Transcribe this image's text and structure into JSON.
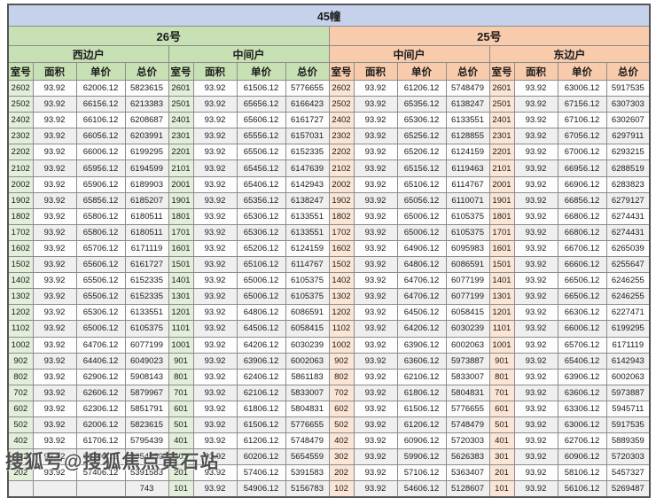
{
  "title": "45幢",
  "watermark": {
    "text": "搜狐号@搜狐焦点黄石站"
  },
  "columns": [
    "室号",
    "面积",
    "单价",
    "总价"
  ],
  "colors": {
    "title_bar": "#c6d1eb",
    "building_26_header": "#c7e1b5",
    "building_26_room_tint": "#e3efda",
    "building_25_header": "#f8cbad",
    "building_25_room_tint": "#fbe5d6",
    "row_stripe": "#efefef",
    "grid_border": "#8c8c8c"
  },
  "buildings": [
    {
      "name": "26号",
      "theme": "green",
      "sections": [
        {
          "name": "西边户",
          "rows": [
            [
              "2602",
              "93.92",
              "62006.12",
              "5823615"
            ],
            [
              "2502",
              "93.92",
              "66156.12",
              "6213383"
            ],
            [
              "2402",
              "93.92",
              "66106.12",
              "6208687"
            ],
            [
              "2302",
              "93.92",
              "66056.12",
              "6203991"
            ],
            [
              "2202",
              "93.92",
              "66006.12",
              "6199295"
            ],
            [
              "2102",
              "93.92",
              "65956.12",
              "6194599"
            ],
            [
              "2002",
              "93.92",
              "65906.12",
              "6189903"
            ],
            [
              "1902",
              "93.92",
              "65856.12",
              "6185207"
            ],
            [
              "1802",
              "93.92",
              "65806.12",
              "6180511"
            ],
            [
              "1702",
              "93.92",
              "65806.12",
              "6180511"
            ],
            [
              "1602",
              "93.92",
              "65706.12",
              "6171119"
            ],
            [
              "1502",
              "93.92",
              "65606.12",
              "6161727"
            ],
            [
              "1402",
              "93.92",
              "65506.12",
              "6152335"
            ],
            [
              "1302",
              "93.92",
              "65506.12",
              "6152335"
            ],
            [
              "1202",
              "93.92",
              "65306.12",
              "6133551"
            ],
            [
              "1102",
              "93.92",
              "65006.12",
              "6105375"
            ],
            [
              "1002",
              "93.92",
              "64706.12",
              "6077199"
            ],
            [
              "902",
              "93.92",
              "64406.12",
              "6049023"
            ],
            [
              "802",
              "93.92",
              "62906.12",
              "5908143"
            ],
            [
              "702",
              "93.92",
              "62606.12",
              "5879967"
            ],
            [
              "602",
              "93.92",
              "62306.12",
              "5851791"
            ],
            [
              "502",
              "93.92",
              "62006.12",
              "5823615"
            ],
            [
              "402",
              "93.92",
              "61706.12",
              "5795439"
            ],
            [
              "302",
              "93.92",
              "60206.12",
              "5654559"
            ],
            [
              "202",
              "93.92",
              "57406.12",
              "5391583"
            ],
            [
              "",
              "",
              "",
              "743"
            ]
          ]
        },
        {
          "name": "中间户",
          "rows": [
            [
              "2601",
              "93.92",
              "61506.12",
              "5776655"
            ],
            [
              "2501",
              "93.92",
              "65656.12",
              "6166423"
            ],
            [
              "2401",
              "93.92",
              "65606.12",
              "6161727"
            ],
            [
              "2301",
              "93.92",
              "65556.12",
              "6157031"
            ],
            [
              "2201",
              "93.92",
              "65506.12",
              "6152335"
            ],
            [
              "2101",
              "93.92",
              "65456.12",
              "6147639"
            ],
            [
              "2001",
              "93.92",
              "65406.12",
              "6142943"
            ],
            [
              "1901",
              "93.92",
              "65356.12",
              "6138247"
            ],
            [
              "1801",
              "93.92",
              "65306.12",
              "6133551"
            ],
            [
              "1701",
              "93.92",
              "65306.12",
              "6133551"
            ],
            [
              "1601",
              "93.92",
              "65206.12",
              "6124159"
            ],
            [
              "1501",
              "93.92",
              "65106.12",
              "6114767"
            ],
            [
              "1401",
              "93.92",
              "65006.12",
              "6105375"
            ],
            [
              "1301",
              "93.92",
              "65006.12",
              "6105375"
            ],
            [
              "1201",
              "93.92",
              "64806.12",
              "6086591"
            ],
            [
              "1101",
              "93.92",
              "64506.12",
              "6058415"
            ],
            [
              "1001",
              "93.92",
              "64206.12",
              "6030239"
            ],
            [
              "901",
              "93.92",
              "63906.12",
              "6002063"
            ],
            [
              "801",
              "93.92",
              "62406.12",
              "5861183"
            ],
            [
              "701",
              "93.92",
              "62106.12",
              "5833007"
            ],
            [
              "601",
              "93.92",
              "61806.12",
              "5804831"
            ],
            [
              "501",
              "93.92",
              "61506.12",
              "5776655"
            ],
            [
              "401",
              "93.92",
              "61206.12",
              "5748479"
            ],
            [
              "301",
              "93.92",
              "60206.12",
              "5654559"
            ],
            [
              "201",
              "93.92",
              "57406.12",
              "5391583"
            ],
            [
              "101",
              "93.92",
              "54906.12",
              "5156783"
            ]
          ]
        }
      ]
    },
    {
      "name": "25号",
      "theme": "orange",
      "sections": [
        {
          "name": "中间户",
          "rows": [
            [
              "2602",
              "93.92",
              "61206.12",
              "5748479"
            ],
            [
              "2502",
              "93.92",
              "65356.12",
              "6138247"
            ],
            [
              "2402",
              "93.92",
              "65306.12",
              "6133551"
            ],
            [
              "2302",
              "93.92",
              "65256.12",
              "6128855"
            ],
            [
              "2202",
              "93.92",
              "65206.12",
              "6124159"
            ],
            [
              "2102",
              "93.92",
              "65156.12",
              "6119463"
            ],
            [
              "2002",
              "93.92",
              "65106.12",
              "6114767"
            ],
            [
              "1902",
              "93.92",
              "65056.12",
              "6110071"
            ],
            [
              "1802",
              "93.92",
              "65006.12",
              "6105375"
            ],
            [
              "1702",
              "93.92",
              "65006.12",
              "6105375"
            ],
            [
              "1602",
              "93.92",
              "64906.12",
              "6095983"
            ],
            [
              "1502",
              "93.92",
              "64806.12",
              "6086591"
            ],
            [
              "1402",
              "93.92",
              "64706.12",
              "6077199"
            ],
            [
              "1302",
              "93.92",
              "64706.12",
              "6077199"
            ],
            [
              "1202",
              "93.92",
              "64506.12",
              "6058415"
            ],
            [
              "1102",
              "93.92",
              "64206.12",
              "6030239"
            ],
            [
              "1002",
              "93.92",
              "63906.12",
              "6002063"
            ],
            [
              "902",
              "93.92",
              "63606.12",
              "5973887"
            ],
            [
              "802",
              "93.92",
              "62106.12",
              "5833007"
            ],
            [
              "702",
              "93.92",
              "61806.12",
              "5804831"
            ],
            [
              "602",
              "93.92",
              "61506.12",
              "5776655"
            ],
            [
              "502",
              "93.92",
              "61206.12",
              "5748479"
            ],
            [
              "402",
              "93.92",
              "60906.12",
              "5720303"
            ],
            [
              "302",
              "93.92",
              "59906.12",
              "5626383"
            ],
            [
              "202",
              "93.92",
              "57106.12",
              "5363407"
            ],
            [
              "102",
              "93.92",
              "54606.12",
              "5128607"
            ]
          ]
        },
        {
          "name": "东边户",
          "rows": [
            [
              "2601",
              "93.92",
              "63006.12",
              "5917535"
            ],
            [
              "2501",
              "93.92",
              "67156.12",
              "6307303"
            ],
            [
              "2401",
              "93.92",
              "67106.12",
              "6302607"
            ],
            [
              "2301",
              "93.92",
              "67056.12",
              "6297911"
            ],
            [
              "2201",
              "93.92",
              "67006.12",
              "6293215"
            ],
            [
              "2101",
              "93.92",
              "66956.12",
              "6288519"
            ],
            [
              "2001",
              "93.92",
              "66906.12",
              "6283823"
            ],
            [
              "1901",
              "93.92",
              "66856.12",
              "6279127"
            ],
            [
              "1801",
              "93.92",
              "66806.12",
              "6274431"
            ],
            [
              "1701",
              "93.92",
              "66806.12",
              "6274431"
            ],
            [
              "1601",
              "93.92",
              "66706.12",
              "6265039"
            ],
            [
              "1501",
              "93.92",
              "66606.12",
              "6255647"
            ],
            [
              "1401",
              "93.92",
              "66506.12",
              "6246255"
            ],
            [
              "1301",
              "93.92",
              "66506.12",
              "6246255"
            ],
            [
              "1201",
              "93.92",
              "66306.12",
              "6227471"
            ],
            [
              "1101",
              "93.92",
              "66006.12",
              "6199295"
            ],
            [
              "1001",
              "93.92",
              "65706.12",
              "6171119"
            ],
            [
              "901",
              "93.92",
              "65406.12",
              "6142943"
            ],
            [
              "801",
              "93.92",
              "63906.12",
              "6002063"
            ],
            [
              "701",
              "93.92",
              "63606.12",
              "5973887"
            ],
            [
              "601",
              "93.92",
              "63306.12",
              "5945711"
            ],
            [
              "501",
              "93.92",
              "63006.12",
              "5917535"
            ],
            [
              "401",
              "93.92",
              "62706.12",
              "5889359"
            ],
            [
              "301",
              "93.92",
              "60906.12",
              "5720303"
            ],
            [
              "201",
              "93.92",
              "58106.12",
              "5457327"
            ],
            [
              "101",
              "93.92",
              "56106.12",
              "5269487"
            ]
          ]
        }
      ]
    }
  ]
}
